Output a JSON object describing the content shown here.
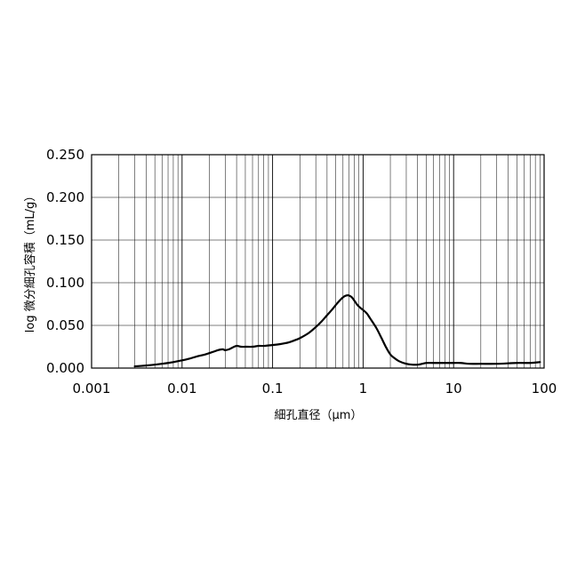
{
  "chart_data": {
    "type": "line",
    "title": "",
    "xlabel": "細孔直径（μm）",
    "ylabel": "log 微分細孔容積（mL/g）",
    "x_scale": "log",
    "xlim": [
      0.001,
      100
    ],
    "ylim": [
      0,
      0.25
    ],
    "grid": true,
    "x_ticks": [
      "0.001",
      "0.01",
      "0.1",
      "1",
      "10",
      "100"
    ],
    "y_ticks": [
      "0.000",
      "0.050",
      "0.100",
      "0.150",
      "0.200",
      "0.250"
    ],
    "series": [
      {
        "x": [
          0.003,
          0.004,
          0.005,
          0.006,
          0.007,
          0.008,
          0.01,
          0.012,
          0.015,
          0.018,
          0.022,
          0.025,
          0.028,
          0.03,
          0.033,
          0.036,
          0.04,
          0.045,
          0.05,
          0.06,
          0.07,
          0.08,
          0.1,
          0.12,
          0.15,
          0.18,
          0.2,
          0.25,
          0.3,
          0.35,
          0.4,
          0.45,
          0.5,
          0.55,
          0.6,
          0.65,
          0.7,
          0.75,
          0.8,
          0.85,
          0.9,
          1.0,
          1.1,
          1.2,
          1.4,
          1.6,
          1.8,
          2.0,
          2.2,
          2.5,
          3.0,
          3.5,
          4.0,
          4.5,
          5,
          6,
          7,
          8,
          10,
          12,
          15,
          20,
          30,
          50,
          70,
          90
        ],
        "y": [
          0.002,
          0.003,
          0.004,
          0.005,
          0.006,
          0.007,
          0.009,
          0.011,
          0.014,
          0.016,
          0.019,
          0.021,
          0.022,
          0.021,
          0.022,
          0.024,
          0.026,
          0.025,
          0.025,
          0.025,
          0.026,
          0.026,
          0.027,
          0.028,
          0.03,
          0.033,
          0.035,
          0.041,
          0.048,
          0.055,
          0.062,
          0.068,
          0.074,
          0.079,
          0.083,
          0.085,
          0.085,
          0.083,
          0.079,
          0.075,
          0.072,
          0.068,
          0.064,
          0.058,
          0.047,
          0.035,
          0.024,
          0.016,
          0.012,
          0.008,
          0.005,
          0.004,
          0.004,
          0.005,
          0.006,
          0.006,
          0.006,
          0.006,
          0.006,
          0.006,
          0.005,
          0.005,
          0.005,
          0.006,
          0.006,
          0.007
        ]
      }
    ],
    "line_color": "#000000"
  }
}
